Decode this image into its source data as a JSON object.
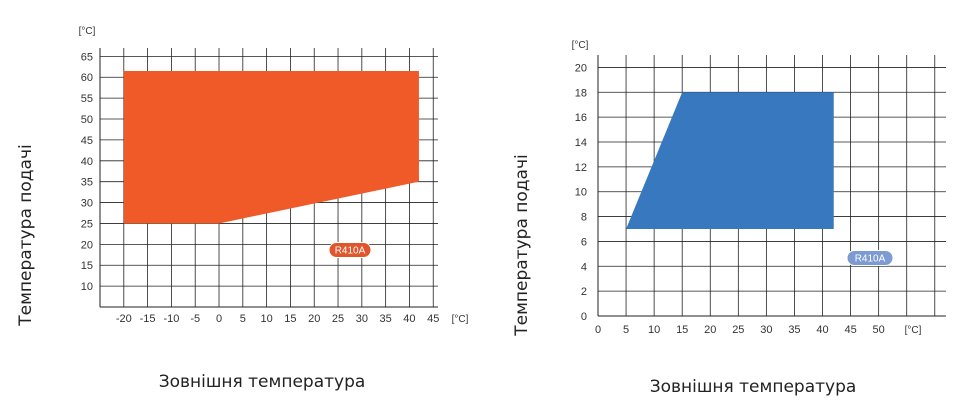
{
  "chart_data": [
    {
      "type": "area",
      "xlabel": "Зовнішня температура",
      "ylabel": "Температура подачі",
      "x_unit": "[°C]",
      "y_unit": "[°C]",
      "x_ticks": [
        -20,
        -15,
        -10,
        -5,
        0,
        5,
        10,
        15,
        20,
        25,
        30,
        35,
        40,
        45
      ],
      "y_ticks": [
        10,
        15,
        20,
        25,
        30,
        35,
        40,
        45,
        50,
        55,
        60,
        65
      ],
      "grid": true,
      "series": [
        {
          "name": "R410A",
          "color": "#F05A28",
          "polygon": [
            [
              -20,
              61.5
            ],
            [
              42,
              61.5
            ],
            [
              42,
              35
            ],
            [
              0,
              25
            ],
            [
              -20,
              25
            ]
          ]
        }
      ]
    },
    {
      "type": "area",
      "xlabel": "Зовнішня температура",
      "ylabel": "Температура подачі",
      "x_unit": "[°C]",
      "y_unit": "[°C]",
      "x_ticks": [
        0,
        5,
        10,
        15,
        20,
        25,
        30,
        35,
        40,
        45,
        50
      ],
      "y_ticks": [
        0,
        2,
        4,
        6,
        8,
        10,
        12,
        14,
        16,
        18,
        20
      ],
      "grid": true,
      "series": [
        {
          "name": "R410A",
          "color": "#3878BE",
          "polygon": [
            [
              5,
              7
            ],
            [
              15,
              18
            ],
            [
              42,
              18
            ],
            [
              42,
              7
            ]
          ]
        }
      ]
    }
  ],
  "colors": {
    "grid": "#222222",
    "badge1": "#E0552B",
    "badge2": "#7C9BD2"
  }
}
